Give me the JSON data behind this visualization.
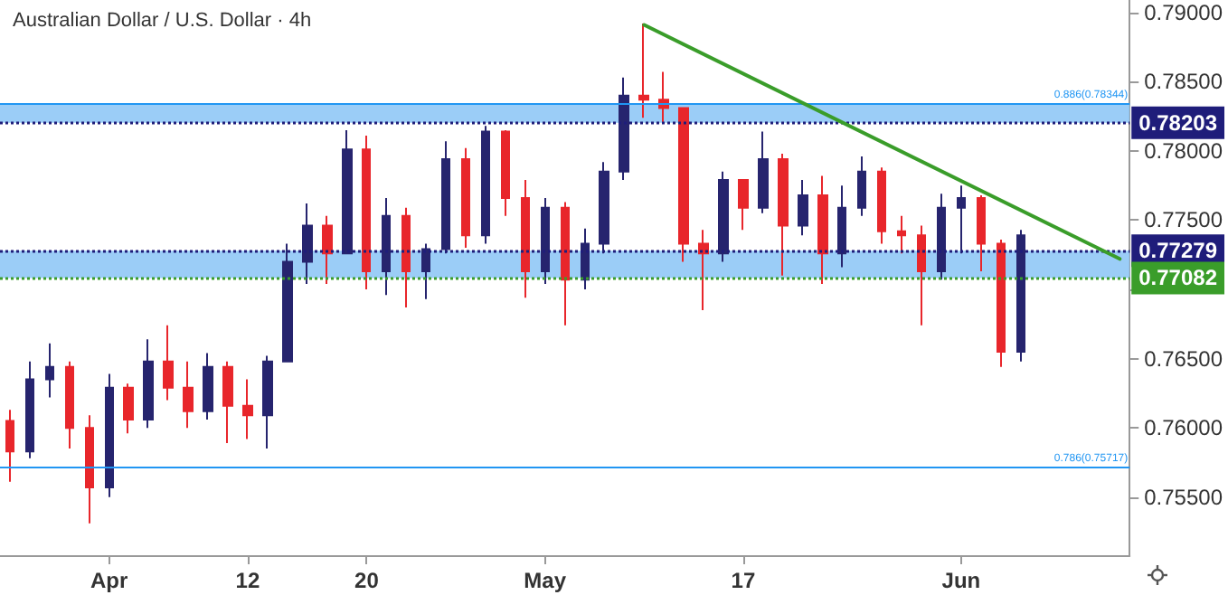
{
  "chart_data": {
    "type": "candlestick",
    "title": "Australian Dollar / U.S. Dollar · 4h",
    "categories": [
      null,
      null,
      null,
      null,
      null,
      "Apr",
      null,
      null,
      null,
      null,
      null,
      null,
      "12",
      null,
      null,
      null,
      null,
      null,
      "20",
      null,
      null,
      null,
      null,
      null,
      null,
      null,
      null,
      "May",
      null,
      null,
      null,
      null,
      null,
      null,
      null,
      null,
      null,
      "17",
      null,
      null,
      null,
      null,
      null,
      null,
      null,
      null,
      null,
      null,
      "Jun",
      null,
      null,
      null,
      null,
      null,
      null,
      null,
      null
    ],
    "ohlc": [
      [
        0.7605,
        0.7613,
        0.7561,
        0.7583
      ],
      [
        0.7583,
        0.7648,
        0.7578,
        0.7635
      ],
      [
        0.7635,
        0.7661,
        0.7622,
        0.7644
      ],
      [
        0.7644,
        0.7648,
        0.7585,
        0.76
      ],
      [
        0.76,
        0.7609,
        0.7531,
        0.7557
      ],
      [
        0.7557,
        0.7639,
        0.755,
        0.7629
      ],
      [
        0.7629,
        0.7632,
        0.7596,
        0.7606
      ],
      [
        0.7606,
        0.7664,
        0.76,
        0.7648
      ],
      [
        0.7648,
        0.7674,
        0.762,
        0.7629
      ],
      [
        0.7629,
        0.7648,
        0.76,
        0.7612
      ],
      [
        0.7612,
        0.7654,
        0.7606,
        0.7644
      ],
      [
        0.7644,
        0.7648,
        0.7589,
        0.7616
      ],
      [
        0.7616,
        0.7635,
        0.7592,
        0.7609
      ],
      [
        0.7609,
        0.7652,
        0.7585,
        0.7648
      ],
      [
        0.7648,
        0.7733,
        0.7648,
        0.772
      ],
      [
        0.772,
        0.7762,
        0.7704,
        0.7746
      ],
      [
        0.7746,
        0.7753,
        0.7704,
        0.7726
      ],
      [
        0.7726,
        0.7815,
        0.7726,
        0.7801
      ],
      [
        0.7801,
        0.7811,
        0.77,
        0.7713
      ],
      [
        0.7713,
        0.7766,
        0.7696,
        0.7753
      ],
      [
        0.7753,
        0.7759,
        0.7687,
        0.7713
      ],
      [
        0.7713,
        0.7733,
        0.7693,
        0.7729
      ],
      [
        0.7729,
        0.7807,
        0.7726,
        0.7794
      ],
      [
        0.7794,
        0.7802,
        0.773,
        0.7739
      ],
      [
        0.7739,
        0.7818,
        0.7733,
        0.7814
      ],
      [
        0.7814,
        0.7815,
        0.7753,
        0.7766
      ],
      [
        0.7766,
        0.7779,
        0.7694,
        0.7713
      ],
      [
        0.7713,
        0.7766,
        0.7704,
        0.7759
      ],
      [
        0.7759,
        0.7763,
        0.7674,
        0.7707
      ],
      [
        0.7707,
        0.7744,
        0.77,
        0.7733
      ],
      [
        0.7733,
        0.7792,
        0.7726,
        0.7785
      ],
      [
        0.7785,
        0.7853,
        0.7779,
        0.784
      ],
      [
        0.784,
        0.7892,
        0.7824,
        0.7837
      ],
      [
        0.7837,
        0.7857,
        0.782,
        0.7831
      ],
      [
        0.7831,
        0.7831,
        0.772,
        0.7733
      ],
      [
        0.7733,
        0.7743,
        0.7685,
        0.7726
      ],
      [
        0.7726,
        0.7785,
        0.772,
        0.7779
      ],
      [
        0.7779,
        0.7779,
        0.7743,
        0.7759
      ],
      [
        0.7759,
        0.7814,
        0.7755,
        0.7794
      ],
      [
        0.7794,
        0.7798,
        0.771,
        0.7746
      ],
      [
        0.7746,
        0.7779,
        0.7739,
        0.7768
      ],
      [
        0.7768,
        0.7782,
        0.7704,
        0.7726
      ],
      [
        0.7726,
        0.7775,
        0.7716,
        0.7759
      ],
      [
        0.7759,
        0.7796,
        0.7753,
        0.7785
      ],
      [
        0.7785,
        0.7788,
        0.7733,
        0.7742
      ],
      [
        0.7742,
        0.7753,
        0.7726,
        0.7739
      ],
      [
        0.7739,
        0.7746,
        0.7674,
        0.7713
      ],
      [
        0.7713,
        0.7769,
        0.7707,
        0.7759
      ],
      [
        0.7759,
        0.7775,
        0.7726,
        0.7766
      ],
      [
        0.7766,
        0.7768,
        0.7713,
        0.7733
      ],
      [
        0.7733,
        0.7736,
        0.7644,
        0.7655
      ],
      [
        0.7655,
        0.7743,
        0.7648,
        0.7739
      ],
      null,
      null,
      null,
      null,
      null
    ],
    "series": [
      {
        "type": "line",
        "color": "#3a9d2a",
        "marker": "none",
        "line_style": "solid",
        "values": [
          null,
          null,
          null,
          null,
          null,
          null,
          null,
          null,
          null,
          null,
          null,
          null,
          null,
          null,
          null,
          null,
          null,
          null,
          null,
          null,
          null,
          null,
          null,
          null,
          null,
          null,
          null,
          null,
          null,
          null,
          null,
          null,
          0.7891,
          null,
          null,
          null,
          null,
          null,
          null,
          null,
          null,
          null,
          null,
          null,
          null,
          null,
          null,
          null,
          null,
          null,
          null,
          null,
          null,
          null,
          null,
          null,
          0.7722
        ]
      }
    ],
    "ylim": [
      0.7508,
      0.7909
    ],
    "yticks": [
      {
        "value": 0.755,
        "label": "0.75500"
      },
      {
        "value": 0.76,
        "label": "0.76000"
      },
      {
        "value": 0.765,
        "label": "0.76500"
      },
      {
        "value": 0.77,
        "label": null
      },
      {
        "value": 0.775,
        "label": "0.77500"
      },
      {
        "value": 0.78,
        "label": "0.78000"
      },
      {
        "value": 0.785,
        "label": "0.78500"
      },
      {
        "value": 0.79,
        "label": "0.79000"
      }
    ],
    "bands": [
      {
        "axis": "y",
        "from": 0.78203,
        "to": 0.78344,
        "color": "#90c8f6"
      },
      {
        "axis": "y",
        "from": 0.77082,
        "to": 0.77279,
        "color": "#90c8f6"
      }
    ],
    "ref_lines": [
      {
        "axis": "y",
        "value": 0.78344,
        "label": "0.886(0.78344)",
        "color": "#2196f3",
        "line_style": "solid"
      },
      {
        "axis": "y",
        "value": 0.75717,
        "label": "0.786(0.75717)",
        "color": "#2196f3",
        "line_style": "solid"
      },
      {
        "axis": "y",
        "value": 0.78203,
        "label": "0.78203",
        "color": "#1f1d7a",
        "line_style": "dotted"
      },
      {
        "axis": "y",
        "value": 0.77279,
        "label": "0.77279",
        "color": "#1f1d7a",
        "line_style": "dotted"
      },
      {
        "axis": "y",
        "value": 0.77082,
        "label": "0.77082",
        "color": "#3a9d2a",
        "line_style": "dotted"
      }
    ],
    "grid": false
  }
}
